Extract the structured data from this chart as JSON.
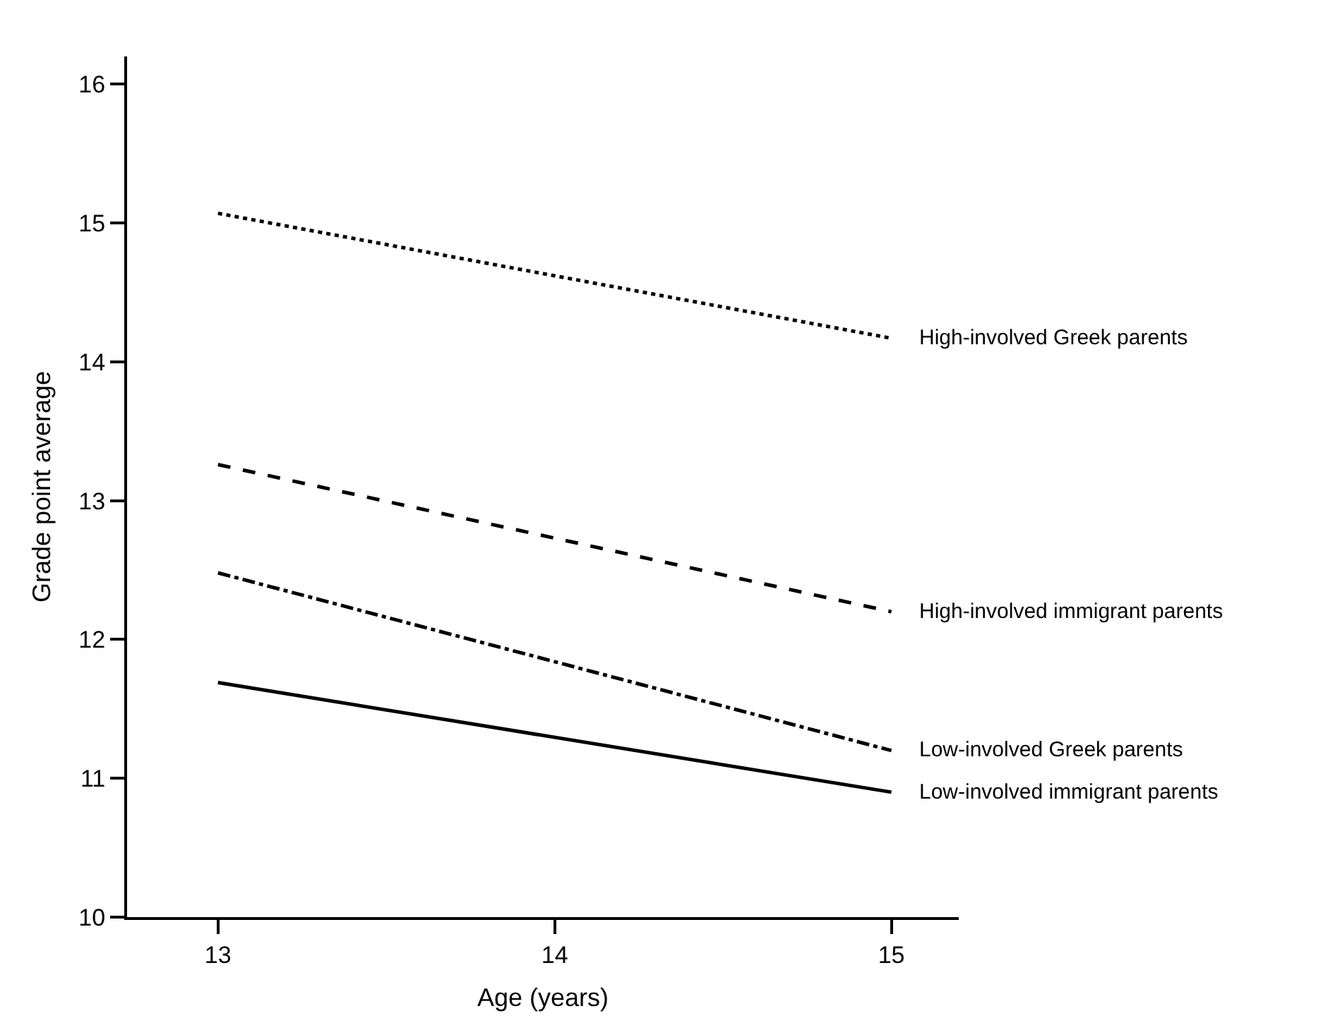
{
  "chart_data": {
    "type": "line",
    "xlabel": "Age (years)",
    "ylabel": "Grade point average",
    "x": [
      13,
      15
    ],
    "xlim": [
      12.73,
      15.2
    ],
    "xticks": [
      13,
      14,
      15
    ],
    "ylim": [
      10,
      16.2
    ],
    "yticks": [
      10,
      11,
      12,
      13,
      14,
      15,
      16
    ],
    "legend": false,
    "marker": "none",
    "series": [
      {
        "name": "High-involved Greek parents",
        "color": "#000000",
        "line_style": "dotted",
        "values": [
          15.07,
          14.17
        ]
      },
      {
        "name": "High-involved immigrant parents",
        "color": "#000000",
        "line_style": "dashed",
        "values": [
          13.26,
          12.2
        ]
      },
      {
        "name": "Low-involved Greek parents",
        "color": "#000000",
        "line_style": "dashdot",
        "values": [
          12.48,
          11.2
        ]
      },
      {
        "name": "Low-involved immigrant parents",
        "color": "#000000",
        "line_style": "solid",
        "values": [
          11.69,
          10.9
        ]
      }
    ]
  }
}
